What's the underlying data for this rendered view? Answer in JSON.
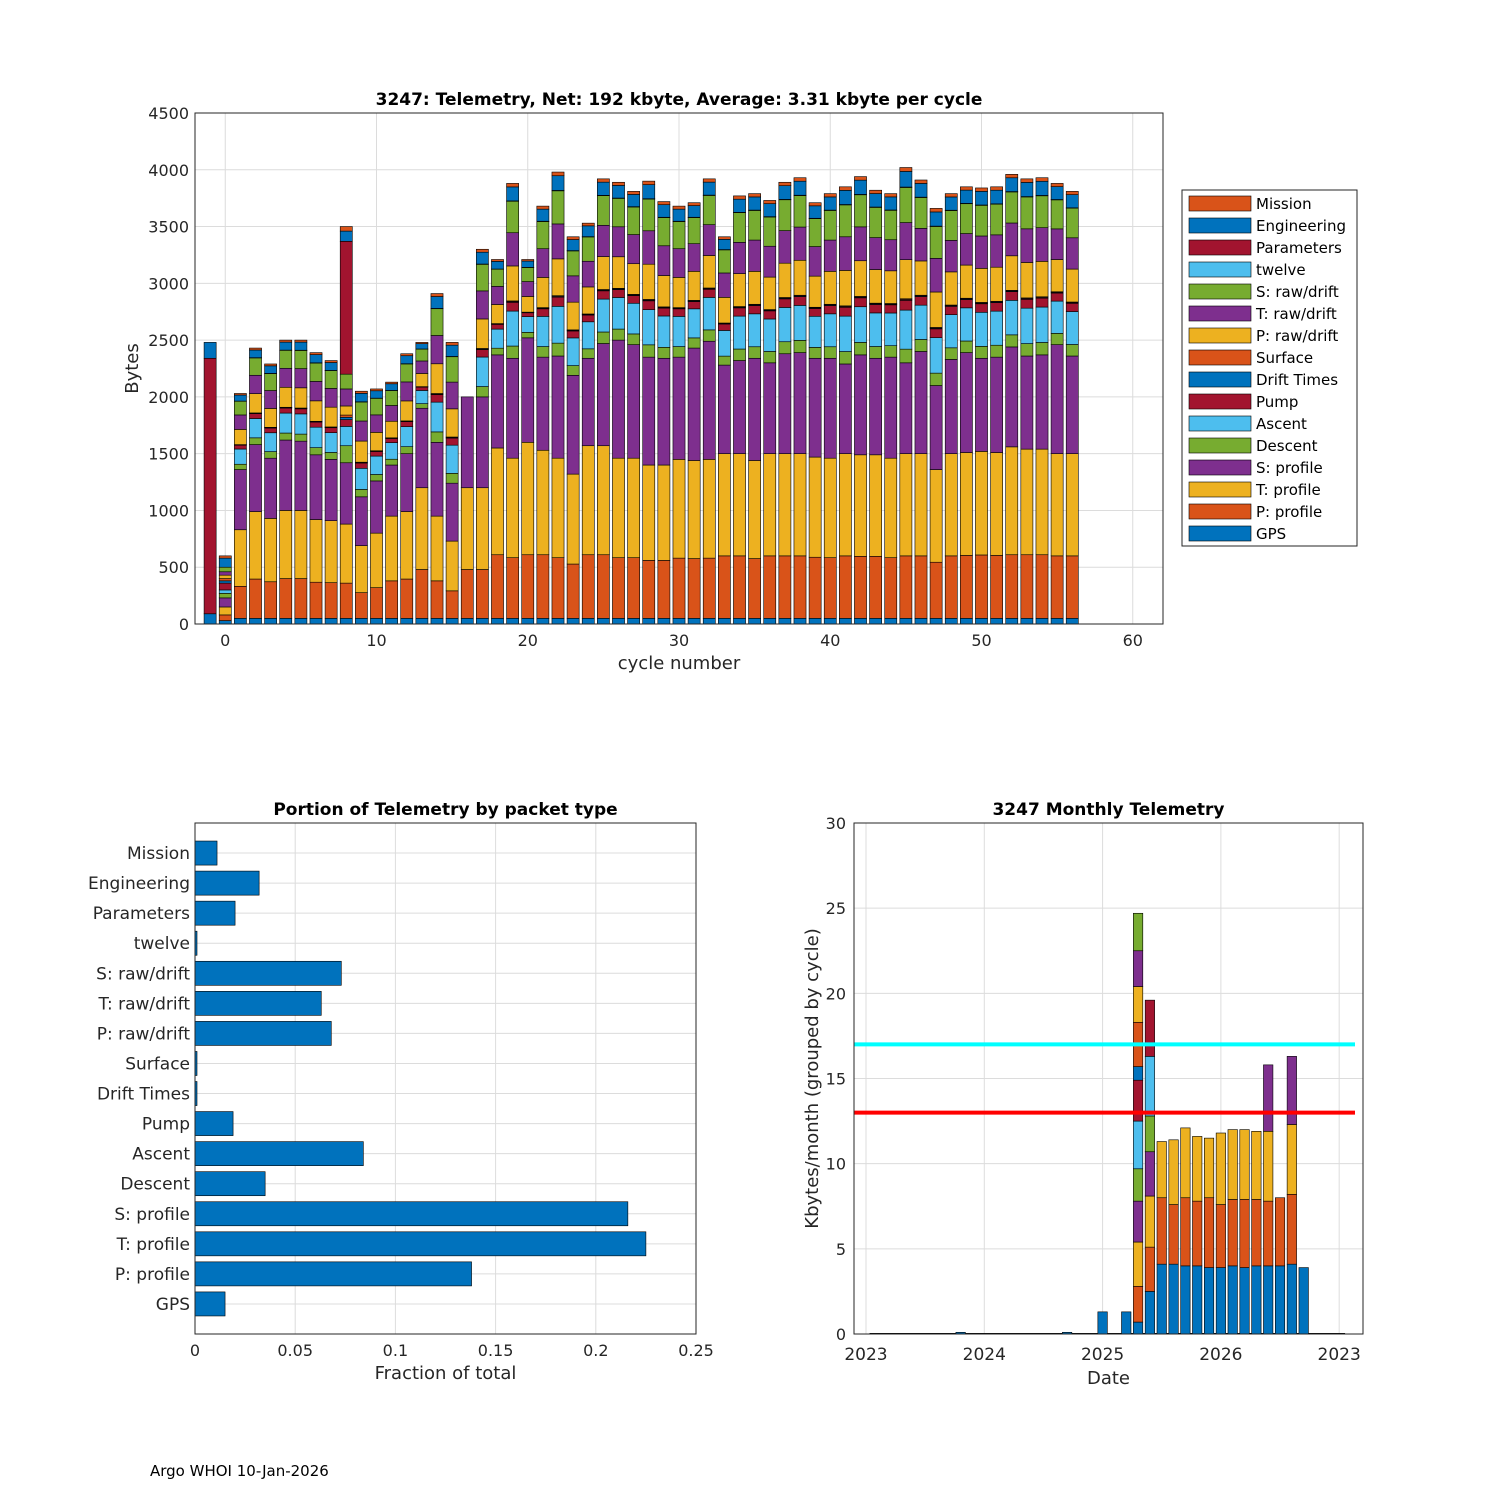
{
  "footer": "Argo WHOI 10-Jan-2026",
  "colors": {
    "Mission": "#D95319",
    "Engineering": "#0072BD",
    "Parameters": "#A2142F",
    "twelve": "#4DBEEE",
    "S: raw/drift": "#77AC30",
    "T: raw/drift": "#7E2F8E",
    "P: raw/drift": "#EDB120",
    "Surface": "#D95319",
    "Drift Times": "#0072BD",
    "Pump": "#A2142F",
    "Ascent": "#4DBEEE",
    "Descent": "#77AC30",
    "S: profile": "#7E2F8E",
    "T: profile": "#EDB120",
    "P: profile": "#D95319",
    "GPS": "#0072BD",
    "bar": "#0072BD",
    "line_cyan": "#00FFFF",
    "line_red": "#FF0000"
  },
  "chart_data": [
    {
      "id": "telemetry_per_cycle",
      "type": "bar",
      "stacked": true,
      "title": "3247: Telemetry, Net:    192 kbyte,  Average: 3.31 kbyte per cycle",
      "xlabel": "cycle number",
      "ylabel": "Bytes",
      "xlim": [
        -2,
        62
      ],
      "ylim": [
        0,
        4500
      ],
      "xticks": [
        0,
        10,
        20,
        30,
        40,
        50,
        60
      ],
      "yticks": [
        0,
        500,
        1000,
        1500,
        2000,
        2500,
        3000,
        3500,
        4000,
        4500
      ],
      "grid": true,
      "legend_position": "right",
      "legend": [
        "Mission",
        "Engineering",
        "Parameters",
        "twelve",
        "S: raw/drift",
        "T: raw/drift",
        "P: raw/drift",
        "Surface",
        "Drift Times",
        "Pump",
        "Ascent",
        "Descent",
        "S: profile",
        "T: profile",
        "P: profile",
        "GPS"
      ],
      "stack_order": [
        "GPS",
        "P: profile",
        "T: profile",
        "S: profile",
        "Descent",
        "Ascent",
        "Pump",
        "Drift Times",
        "Surface",
        "P: raw/drift",
        "T: raw/drift",
        "S: raw/drift",
        "twelve",
        "Parameters",
        "Engineering",
        "Mission"
      ],
      "special_cycles": [
        {
          "x": -1,
          "segments": {
            "GPS": 90,
            "Pump": 2250,
            "Engineering": 140
          }
        },
        {
          "x": 0,
          "segments": {
            "GPS": 30,
            "P: profile": 50,
            "T: profile": 70,
            "S: profile": 80,
            "Descent": 40,
            "Ascent": 30,
            "Pump": 60,
            "Drift Times": 20,
            "Surface": 20,
            "P: raw/drift": 30,
            "T: raw/drift": 30,
            "S: raw/drift": 40,
            "Engineering": 80,
            "Mission": 20
          }
        },
        {
          "x": 8,
          "segments": {
            "GPS": 50,
            "P: profile": 310,
            "T: profile": 520,
            "S: profile": 540,
            "Descent": 150,
            "Ascent": 170,
            "Pump": 60,
            "Drift Times": 20,
            "Surface": 20,
            "P: raw/drift": 80,
            "T: raw/drift": 150,
            "S: raw/drift": 130,
            "Parameters": 1170,
            "Engineering": 90,
            "Mission": 40
          }
        }
      ],
      "cycles": [
        1,
        2,
        3,
        4,
        5,
        6,
        7,
        9,
        10,
        11,
        12,
        13,
        14,
        15,
        16,
        17,
        18,
        19,
        20,
        21,
        22,
        23,
        24,
        25,
        26,
        27,
        28,
        29,
        30,
        31,
        32,
        33,
        34,
        35,
        36,
        37,
        38,
        39,
        40,
        41,
        42,
        43,
        44,
        45,
        46,
        47,
        48,
        49,
        50,
        51,
        52,
        53,
        54,
        55,
        56
      ],
      "totals": [
        2030,
        2430,
        2290,
        2500,
        2500,
        2390,
        2320,
        2050,
        2070,
        2130,
        2380,
        2480,
        2910,
        2480,
        2000,
        3300,
        3210,
        3880,
        3210,
        3680,
        3980,
        3410,
        3530,
        3920,
        3890,
        3810,
        3900,
        3720,
        3680,
        3710,
        3920,
        3410,
        3770,
        3790,
        3730,
        3890,
        3930,
        3710,
        3790,
        3850,
        3940,
        3820,
        3790,
        4020,
        3910,
        3660,
        3790,
        3850,
        3840,
        3850,
        3960,
        3920,
        3930,
        3880,
        3810
      ],
      "profile_tops": [
        830,
        990,
        930,
        1000,
        1000,
        920,
        910,
        690,
        800,
        950,
        990,
        1200,
        950,
        730,
        1200,
        1200,
        1550,
        1460,
        1600,
        1530,
        1460,
        1320,
        1570,
        1570,
        1460,
        1460,
        1400,
        1400,
        1450,
        1440,
        1450,
        1500,
        1500,
        1440,
        1500,
        1500,
        1500,
        1470,
        1460,
        1500,
        1490,
        1490,
        1460,
        1500,
        1500,
        1360,
        1500,
        1510,
        1520,
        1510,
        1560,
        1540,
        1540,
        1500,
        1500
      ],
      "s_profile_tops": [
        1360,
        1580,
        1460,
        1620,
        1610,
        1490,
        1450,
        1120,
        1260,
        1400,
        1500,
        1900,
        1600,
        1240,
        2000,
        2000,
        2370,
        2340,
        2520,
        2350,
        2360,
        2190,
        2340,
        2470,
        2500,
        2460,
        2350,
        2340,
        2350,
        2430,
        2490,
        2280,
        2320,
        2340,
        2300,
        2380,
        2390,
        2340,
        2340,
        2290,
        2370,
        2340,
        2350,
        2300,
        2400,
        2100,
        2330,
        2390,
        2340,
        2350,
        2440,
        2360,
        2370,
        2460,
        2360
      ]
    },
    {
      "id": "portion_by_packet",
      "type": "bar",
      "orientation": "horizontal",
      "title": "Portion of Telemetry by packet type",
      "xlabel": "Fraction of total",
      "xlim": [
        0,
        0.25
      ],
      "xticks": [
        0,
        0.05,
        0.1,
        0.15,
        0.2,
        0.25
      ],
      "xtick_labels": [
        "0",
        "0.05",
        "0.1",
        "0.15",
        "0.2",
        "0.25"
      ],
      "grid": true,
      "categories": [
        "Mission",
        "Engineering",
        "Parameters",
        "twelve",
        "S: raw/drift",
        "T: raw/drift",
        "P: raw/drift",
        "Surface",
        "Drift Times",
        "Pump",
        "Ascent",
        "Descent",
        "S: profile",
        "T: profile",
        "P: profile",
        "GPS"
      ],
      "values": [
        0.011,
        0.032,
        0.02,
        0.001,
        0.073,
        0.063,
        0.068,
        0.001,
        0.001,
        0.019,
        0.084,
        0.035,
        0.216,
        0.225,
        0.138,
        0.015
      ]
    },
    {
      "id": "monthly_telemetry",
      "type": "bar",
      "stacked": true,
      "title": "3247 Monthly Telemetry",
      "xlabel": "Date",
      "ylabel": "Kbytes/month (grouped by cycle)",
      "ylim": [
        0,
        30
      ],
      "yticks": [
        0,
        5,
        10,
        15,
        20,
        25,
        30
      ],
      "xtick_labels": [
        "2023",
        "2024",
        "2025",
        "2026",
        "2023"
      ],
      "xlim_months": [
        0,
        41
      ],
      "hlines": [
        {
          "y": 17,
          "color": "cyan"
        },
        {
          "y": 13,
          "color": "red"
        }
      ],
      "grid": true,
      "stack_order": [
        "GPS",
        "P: profile",
        "T: profile",
        "S: profile",
        "Descent",
        "Ascent",
        "Pump",
        "Drift Times",
        "Surface",
        "P: raw/drift",
        "T: raw/drift",
        "S: raw/drift"
      ],
      "months": [
        {
          "m": 8,
          "segments": {
            "Engineering": 0.1
          }
        },
        {
          "m": 17,
          "segments": {
            "Engineering": 0.1
          }
        },
        {
          "m": 20,
          "segments": {
            "GPS": 1.3
          }
        },
        {
          "m": 22,
          "segments": {
            "GPS": 1.3
          }
        },
        {
          "m": 23,
          "segments": {
            "GPS": 0.7,
            "P: profile": 2.1,
            "T: profile": 2.6,
            "S: profile": 2.4,
            "Descent": 1.9,
            "Ascent": 2.8,
            "Pump": 2.4,
            "Drift Times": 0.8,
            "Surface": 2.6,
            "P: raw/drift": 2.1,
            "T: raw/drift": 2.1,
            "S: raw/drift": 2.2
          }
        },
        {
          "m": 24,
          "segments": {
            "GPS": 2.5,
            "P: profile": 2.6,
            "T: profile": 3.0,
            "S: profile": 2.6,
            "Descent": 2.1,
            "Ascent": 3.5,
            "Pump": 3.3
          }
        },
        {
          "m": 25,
          "segments": {
            "GPS": 4.1,
            "P: profile": 3.9,
            "T: profile": 3.3
          }
        },
        {
          "m": 26,
          "segments": {
            "GPS": 4.1,
            "P: profile": 3.5,
            "T: profile": 3.8
          }
        },
        {
          "m": 27,
          "segments": {
            "GPS": 4.0,
            "P: profile": 4.0,
            "T: profile": 4.1
          }
        },
        {
          "m": 28,
          "segments": {
            "GPS": 4.0,
            "P: profile": 3.8,
            "T: profile": 3.8
          }
        },
        {
          "m": 29,
          "segments": {
            "GPS": 3.9,
            "P: profile": 4.1,
            "T: profile": 3.5
          }
        },
        {
          "m": 30,
          "segments": {
            "GPS": 3.9,
            "P: profile": 3.7,
            "T: profile": 4.2
          }
        },
        {
          "m": 31,
          "segments": {
            "GPS": 4.0,
            "P: profile": 3.9,
            "T: profile": 4.1
          }
        },
        {
          "m": 32,
          "segments": {
            "GPS": 3.9,
            "P: profile": 4.0,
            "T: profile": 4.1
          }
        },
        {
          "m": 33,
          "segments": {
            "GPS": 4.0,
            "P: profile": 3.9,
            "T: profile": 4.0
          }
        },
        {
          "m": 34,
          "segments": {
            "GPS": 4.0,
            "P: profile": 3.8,
            "T: profile": 4.1,
            "S: profile": 3.9
          }
        },
        {
          "m": 35,
          "segments": {
            "GPS": 4.0,
            "P: profile": 4.0
          }
        },
        {
          "m": 36,
          "segments": {
            "GPS": 4.1,
            "P: profile": 4.1,
            "T: profile": 4.1,
            "S: profile": 4.0
          }
        },
        {
          "m": 37,
          "segments": {
            "GPS": 3.9
          }
        }
      ]
    }
  ]
}
